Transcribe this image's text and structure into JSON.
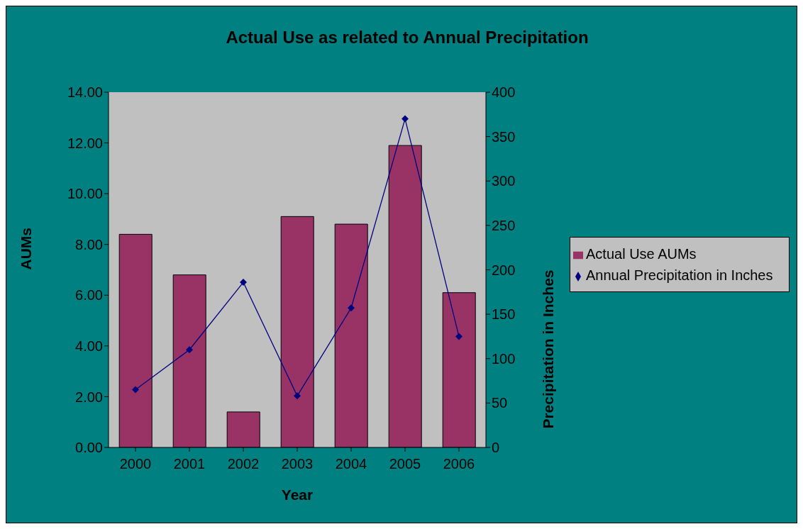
{
  "chart_data": {
    "type": "bar",
    "title": "Actual Use as related to Annual Precipitation",
    "xlabel": "Year",
    "ylabel": "AUMs",
    "y2label": "Precipitation in Inches",
    "categories": [
      "2000",
      "2001",
      "2002",
      "2003",
      "2004",
      "2005",
      "2006"
    ],
    "series": [
      {
        "name": "Actual Use AUMs",
        "color": "#993366",
        "values": [
          8.4,
          6.8,
          1.4,
          9.1,
          8.8,
          11.9,
          6.1
        ]
      },
      {
        "name": "Annual Precipitation in Inches",
        "type": "line",
        "axis": "y2",
        "color": "#000080",
        "marker": "diamond",
        "values": [
          65,
          110,
          186,
          58,
          157,
          370,
          125
        ]
      }
    ],
    "ylim": [
      0,
      14
    ],
    "yticks": [
      {
        "value": 0,
        "label": "0.00"
      },
      {
        "value": 2,
        "label": "2.00"
      },
      {
        "value": 4,
        "label": "4.00"
      },
      {
        "value": 6,
        "label": "6.00"
      },
      {
        "value": 8,
        "label": "8.00"
      },
      {
        "value": 10,
        "label": "10.00"
      },
      {
        "value": 12,
        "label": "12.00"
      },
      {
        "value": 14,
        "label": "14.00"
      }
    ],
    "y2lim": [
      0,
      400
    ],
    "y2ticks": [
      0,
      50,
      100,
      150,
      200,
      250,
      300,
      350,
      400
    ],
    "grid": false,
    "legend": "right"
  }
}
